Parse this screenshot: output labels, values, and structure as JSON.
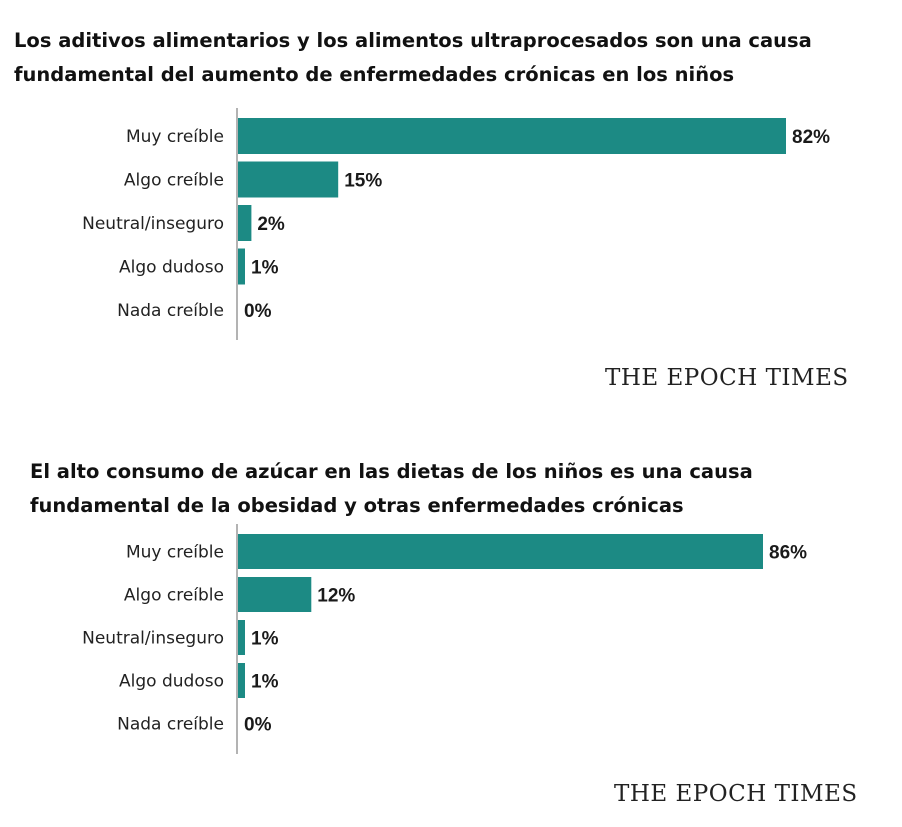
{
  "theme": {
    "bar_color": "#1c8a84",
    "axis_color": "#9a9a9a"
  },
  "chart_data": [
    {
      "type": "bar",
      "orientation": "horizontal",
      "title_line1": "Los aditivos alimentarios y los alimentos ultraprocesados son una causa",
      "title_line2": "fundamental del aumento de enfermedades crónicas en los niños",
      "categories": [
        "Muy creíble",
        "Algo creíble",
        "Neutral/inseguro",
        "Algo dudoso",
        "Nada creíble"
      ],
      "values": [
        82,
        15,
        2,
        1,
        0
      ],
      "value_labels": [
        "82%",
        "15%",
        "2%",
        "1%",
        "0%"
      ],
      "xlim": [
        0,
        82
      ],
      "source": "THE EPOCH TIMES"
    },
    {
      "type": "bar",
      "orientation": "horizontal",
      "title_line1": "El alto consumo de azúcar en las dietas de los niños es una causa",
      "title_line2": "fundamental de la obesidad y otras enfermedades crónicas",
      "categories": [
        "Muy creíble",
        "Algo creíble",
        "Neutral/inseguro",
        "Algo dudoso",
        "Nada creíble"
      ],
      "values": [
        86,
        12,
        1,
        1,
        0
      ],
      "value_labels": [
        "86%",
        "12%",
        "1%",
        "1%",
        "0%"
      ],
      "xlim": [
        0,
        86
      ],
      "source": "THE EPOCH TIMES"
    }
  ]
}
